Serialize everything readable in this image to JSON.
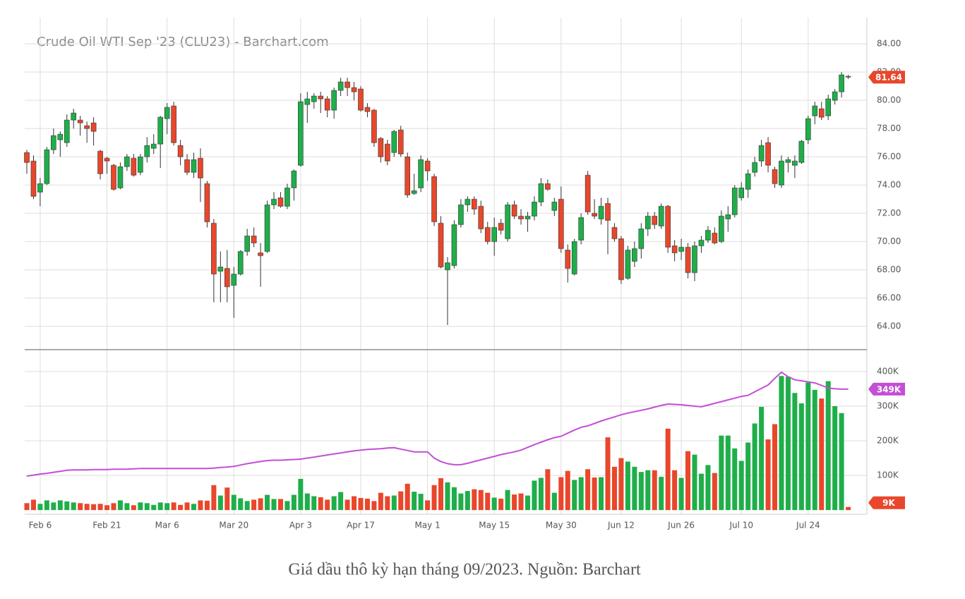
{
  "chart_data": {
    "type": "candlestick",
    "title": "Crude Oil WTI Sep '23 (CLU23) - Barchart.com",
    "categories": [
      null,
      null,
      "Feb 6",
      null,
      null,
      null,
      null,
      null,
      null,
      null,
      null,
      null,
      "Feb 21",
      null,
      null,
      null,
      null,
      null,
      null,
      null,
      null,
      "Mar 6",
      null,
      null,
      null,
      null,
      null,
      null,
      null,
      null,
      null,
      "Mar 20",
      null,
      null,
      null,
      null,
      null,
      null,
      null,
      null,
      null,
      "Apr 3",
      null,
      null,
      null,
      null,
      null,
      null,
      null,
      null,
      "Apr 17",
      null,
      null,
      null,
      null,
      null,
      null,
      null,
      null,
      null,
      "May 1",
      null,
      null,
      null,
      null,
      null,
      null,
      null,
      null,
      null,
      "May 15",
      null,
      null,
      null,
      null,
      null,
      null,
      null,
      null,
      null,
      "May 30",
      null,
      null,
      null,
      null,
      null,
      null,
      null,
      null,
      "Jun 12",
      null,
      null,
      null,
      null,
      null,
      null,
      null,
      null,
      "Jun 26",
      null,
      null,
      null,
      null,
      null,
      null,
      null,
      null,
      "Jul 10",
      null,
      null,
      null,
      null,
      null,
      null,
      null,
      null,
      null,
      "Jul 24",
      null,
      null,
      null,
      null,
      null,
      null
    ],
    "open": [
      76.3,
      75.7,
      73.5,
      74.1,
      76.5,
      77.2,
      77.0,
      78.6,
      78.6,
      78.2,
      78.4,
      76.4,
      75.9,
      75.4,
      73.8,
      75.3,
      75.9,
      74.9,
      76.0,
      76.6,
      76.9,
      78.7,
      79.6,
      76.8,
      75.8,
      74.9,
      75.9,
      74.1,
      71.3,
      67.9,
      68.1,
      66.9,
      67.7,
      69.3,
      70.4,
      69.2,
      69.3,
      72.6,
      73.1,
      72.5,
      73.8,
      75.4,
      79.7,
      79.9,
      80.3,
      80.1,
      79.3,
      80.7,
      81.3,
      80.9,
      80.8,
      79.5,
      79.3,
      77.3,
      76.9,
      76.3,
      77.9,
      76.0,
      73.4,
      73.8,
      75.7,
      74.6,
      71.3,
      68.0,
      68.3,
      71.2,
      72.6,
      73.0,
      72.5,
      71.0,
      70.0,
      71.3,
      70.2,
      72.6,
      71.8,
      71.6,
      71.8,
      72.8,
      74.1,
      72.2,
      73.0,
      69.4,
      67.7,
      70.1,
      74.7,
      72.0,
      71.6,
      72.7,
      71.0,
      70.2,
      67.4,
      68.6,
      69.5,
      70.9,
      71.8,
      71.1,
      72.5,
      69.7,
      69.3,
      69.6,
      67.8,
      69.7,
      70.1,
      70.6,
      70.0,
      71.6,
      71.9,
      73.1,
      73.7,
      74.9,
      75.7,
      77.0,
      75.1,
      74.0,
      75.6,
      75.4,
      75.6,
      77.2,
      78.9,
      79.4,
      78.9,
      80.0,
      80.6,
      81.7
    ],
    "high": [
      76.5,
      76.1,
      74.5,
      76.7,
      78.0,
      77.8,
      79.0,
      79.4,
      78.9,
      78.5,
      78.8,
      76.5,
      76.0,
      75.5,
      75.6,
      76.2,
      76.2,
      76.2,
      77.4,
      77.6,
      78.9,
      79.8,
      79.9,
      77.2,
      76.2,
      76.3,
      76.6,
      74.3,
      71.6,
      69.3,
      69.4,
      68.2,
      69.4,
      70.9,
      71.0,
      69.9,
      72.9,
      73.5,
      73.5,
      74.1,
      75.1,
      80.5,
      80.6,
      80.5,
      80.6,
      80.3,
      80.9,
      81.6,
      81.6,
      81.3,
      81.0,
      79.8,
      79.4,
      77.4,
      77.2,
      77.9,
      78.2,
      76.3,
      74.8,
      76.1,
      75.9,
      74.8,
      71.8,
      68.9,
      71.5,
      73.0,
      73.2,
      73.2,
      72.9,
      71.4,
      71.7,
      71.6,
      72.8,
      72.9,
      72.3,
      72.1,
      73.2,
      74.5,
      74.4,
      73.1,
      73.9,
      69.8,
      70.2,
      72.0,
      75.0,
      73.0,
      73.1,
      73.1,
      71.3,
      70.4,
      69.7,
      70.0,
      71.3,
      72.1,
      72.1,
      72.7,
      72.6,
      70.1,
      70.2,
      69.9,
      70.0,
      70.4,
      71.1,
      71.0,
      72.2,
      72.5,
      74.0,
      74.2,
      75.1,
      76.0,
      77.2,
      77.4,
      75.3,
      76.1,
      76.0,
      76.1,
      77.2,
      78.9,
      79.9,
      79.9,
      80.4,
      80.8,
      82.0,
      81.8
    ],
    "low": [
      74.8,
      73.0,
      72.5,
      74.0,
      76.2,
      76.0,
      76.7,
      78.0,
      77.5,
      77.0,
      76.8,
      74.4,
      74.8,
      73.6,
      73.7,
      75.0,
      74.6,
      74.7,
      75.6,
      76.2,
      75.2,
      77.6,
      76.8,
      75.4,
      74.7,
      74.5,
      72.8,
      71.0,
      65.7,
      65.7,
      65.7,
      64.6,
      67.6,
      69.0,
      69.6,
      66.8,
      69.2,
      72.3,
      72.4,
      72.3,
      72.9,
      75.3,
      78.4,
      79.4,
      79.1,
      78.8,
      78.7,
      80.3,
      80.3,
      80.0,
      79.2,
      78.8,
      76.7,
      75.6,
      75.4,
      76.0,
      76.0,
      73.1,
      73.3,
      73.5,
      74.3,
      71.1,
      68.1,
      64.1,
      68.1,
      71.0,
      72.1,
      71.9,
      70.6,
      69.8,
      69.0,
      70.5,
      70.0,
      71.6,
      71.2,
      70.7,
      71.5,
      72.5,
      73.6,
      71.8,
      69.2,
      67.1,
      67.6,
      69.8,
      71.9,
      71.6,
      71.2,
      69.1,
      70.0,
      67.0,
      67.3,
      68.2,
      68.8,
      70.4,
      70.9,
      70.9,
      69.2,
      68.6,
      68.7,
      67.4,
      67.2,
      69.2,
      69.9,
      69.8,
      69.9,
      70.7,
      71.7,
      72.9,
      73.1,
      74.6,
      75.3,
      74.9,
      73.8,
      73.8,
      74.9,
      74.5,
      75.5,
      76.9,
      78.3,
      78.6,
      78.6,
      79.7,
      80.2,
      81.5
    ],
    "close": [
      75.6,
      73.2,
      74.1,
      76.5,
      77.5,
      77.6,
      78.6,
      79.1,
      78.4,
      78.0,
      77.8,
      74.8,
      75.7,
      73.7,
      75.3,
      76.0,
      74.7,
      76.0,
      76.8,
      76.9,
      78.8,
      79.5,
      77.0,
      76.0,
      74.9,
      75.8,
      74.5,
      71.4,
      67.7,
      68.2,
      66.8,
      67.7,
      69.3,
      70.4,
      69.9,
      69.0,
      72.6,
      73.0,
      72.5,
      73.8,
      75.0,
      79.9,
      80.1,
      80.3,
      80.1,
      79.3,
      80.7,
      81.3,
      80.9,
      80.6,
      79.3,
      79.2,
      77.0,
      76.0,
      75.7,
      77.8,
      76.2,
      73.3,
      73.6,
      75.8,
      75.0,
      71.4,
      68.2,
      68.5,
      71.2,
      72.6,
      73.0,
      72.3,
      70.9,
      70.0,
      71.0,
      70.8,
      72.6,
      71.8,
      71.6,
      71.8,
      72.8,
      74.1,
      73.7,
      72.8,
      69.5,
      68.1,
      70.0,
      71.7,
      72.1,
      71.8,
      72.5,
      71.5,
      70.2,
      67.3,
      69.4,
      69.5,
      70.9,
      71.8,
      71.2,
      72.5,
      69.6,
      69.2,
      69.6,
      67.8,
      69.7,
      70.1,
      70.8,
      69.9,
      71.8,
      71.9,
      73.8,
      73.8,
      74.8,
      75.6,
      76.8,
      75.4,
      74.1,
      75.7,
      75.8,
      75.7,
      77.1,
      78.7,
      79.6,
      78.8,
      80.1,
      80.6,
      81.8,
      81.64
    ],
    "up_color": "#1fae4a",
    "down_color": "#e8472b",
    "ylim": [
      62.35,
      85.35
    ],
    "yticks": [
      {
        "value": 64,
        "label": "64.00"
      },
      {
        "value": 66,
        "label": "66.00"
      },
      {
        "value": 68,
        "label": "68.00"
      },
      {
        "value": 70,
        "label": "70.00"
      },
      {
        "value": 72,
        "label": "72.00"
      },
      {
        "value": 74,
        "label": "74.00"
      },
      {
        "value": 76,
        "label": "76.00"
      },
      {
        "value": 78,
        "label": "78.00"
      },
      {
        "value": 80,
        "label": "80.00"
      },
      {
        "value": 82,
        "label": "82.00"
      },
      {
        "value": 84,
        "label": "84.00"
      }
    ],
    "grid": true,
    "volume": {
      "type": "bar",
      "values": [
        20,
        30,
        18,
        28,
        22,
        28,
        25,
        22,
        20,
        18,
        17,
        18,
        14,
        20,
        28,
        20,
        14,
        22,
        20,
        15,
        22,
        20,
        22,
        15,
        22,
        18,
        28,
        27,
        72,
        42,
        65,
        44,
        34,
        26,
        30,
        34,
        44,
        32,
        32,
        26,
        44,
        90,
        48,
        40,
        37,
        30,
        40,
        52,
        30,
        40,
        35,
        33,
        26,
        50,
        40,
        42,
        54,
        76,
        53,
        47,
        28,
        72,
        92,
        80,
        66,
        48,
        55,
        60,
        58,
        50,
        36,
        33,
        58,
        45,
        48,
        42,
        85,
        93,
        118,
        50,
        95,
        113,
        87,
        95,
        118,
        94,
        95,
        210,
        125,
        150,
        140,
        125,
        110,
        115,
        115,
        96,
        235,
        115,
        93,
        170,
        160,
        105,
        130,
        107,
        215,
        215,
        178,
        142,
        195,
        250,
        298,
        204,
        248,
        387,
        385,
        338,
        308,
        368,
        347,
        322,
        372,
        300,
        280,
        9
      ],
      "last_label": "9K",
      "ylim": [
        -12,
        463
      ],
      "yticks": [
        {
          "value": 100,
          "label": "100K"
        },
        {
          "value": 200,
          "label": "200K"
        },
        {
          "value": 300,
          "label": "300K"
        },
        {
          "value": 400,
          "label": "400K"
        }
      ],
      "ma": {
        "color": "#c24fd4",
        "last_label": "349K",
        "values": [
          98,
          101,
          104,
          106,
          109,
          112,
          115,
          116,
          116,
          116,
          117,
          117,
          117,
          118,
          118,
          118,
          119,
          120,
          120,
          120,
          120,
          120,
          120,
          120,
          120,
          120,
          120,
          120,
          121,
          123,
          124,
          126,
          130,
          134,
          137,
          140,
          143,
          144,
          144,
          145,
          146,
          147,
          150,
          153,
          156,
          159,
          162,
          165,
          168,
          171,
          173,
          175,
          176,
          177,
          179,
          180,
          176,
          172,
          168,
          168,
          168,
          150,
          140,
          134,
          131,
          131,
          135,
          140,
          145,
          150,
          155,
          160,
          164,
          168,
          173,
          181,
          189,
          196,
          203,
          209,
          213,
          222,
          231,
          239,
          243,
          250,
          257,
          263,
          269,
          275,
          280,
          284,
          288,
          292,
          297,
          302,
          306,
          305,
          304,
          302,
          300,
          298,
          303,
          308,
          313,
          318,
          323,
          328,
          331,
          341,
          351,
          361,
          380,
          398,
          385,
          376,
          373,
          370,
          367,
          360,
          352,
          350,
          349,
          349
        ]
      }
    }
  },
  "caption": "Giá dầu thô kỳ hạn tháng 09/2023. Nguồn: Barchart"
}
